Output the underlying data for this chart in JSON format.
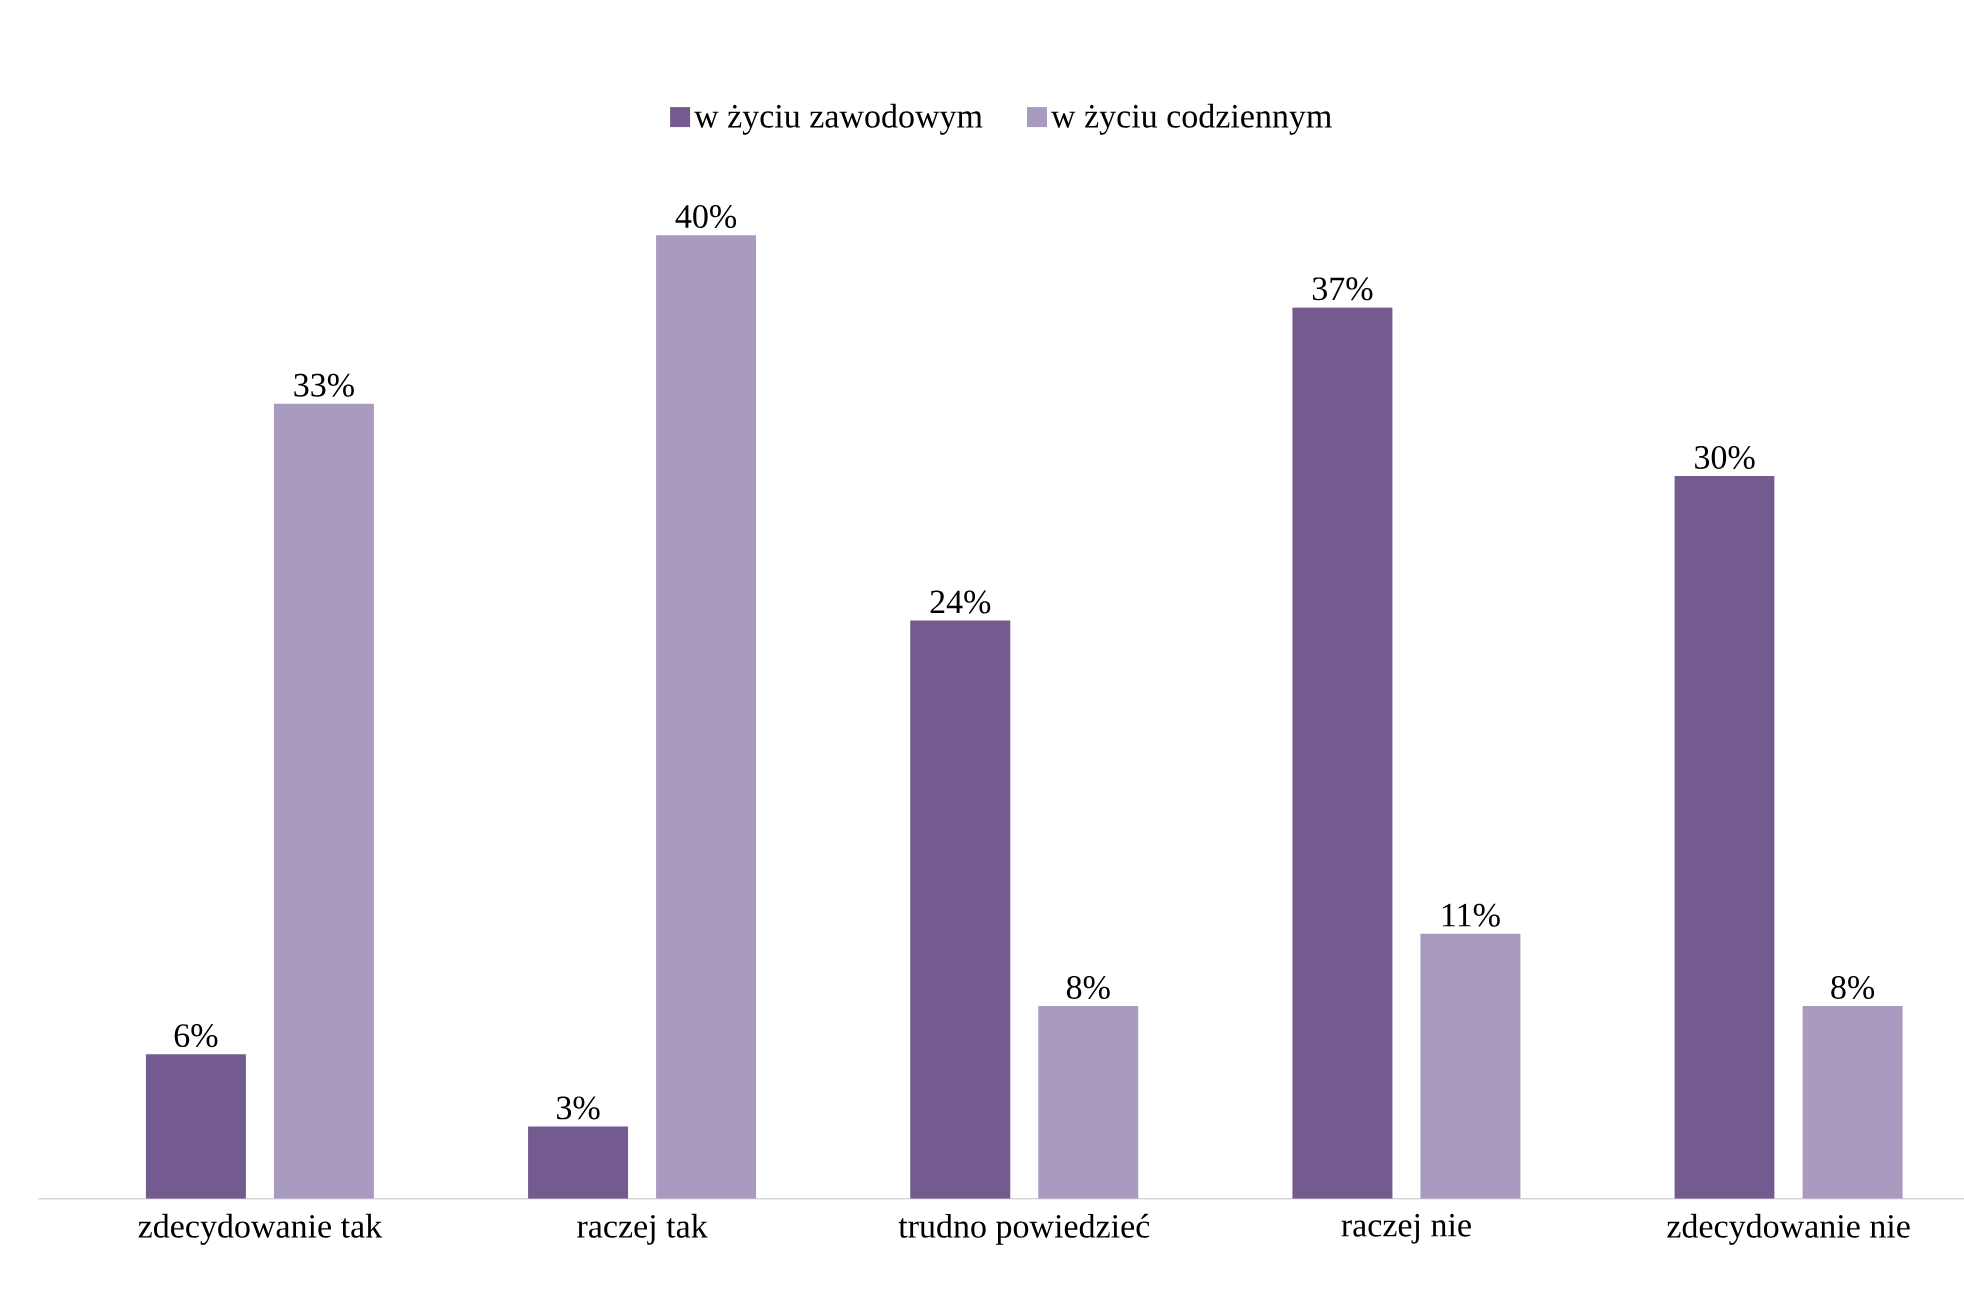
{
  "chart_data": {
    "type": "bar",
    "categories": [
      "zdecydowanie tak",
      "raczej tak",
      "trudno powiedzieć",
      "raczej nie",
      "zdecydowanie nie"
    ],
    "series": [
      {
        "name": "w życiu zawodowym",
        "color": "#735a8f",
        "values": [
          6,
          3,
          24,
          37,
          30
        ],
        "value_labels": [
          "6%",
          "3%",
          "24%",
          "37%",
          "30%"
        ]
      },
      {
        "name": "w życiu codziennym",
        "color": "#a99bbf",
        "values": [
          33,
          40,
          8,
          11,
          8
        ],
        "value_labels": [
          "33%",
          "40%",
          "8%",
          "11%",
          "8%"
        ]
      }
    ],
    "legend": "top"
  }
}
